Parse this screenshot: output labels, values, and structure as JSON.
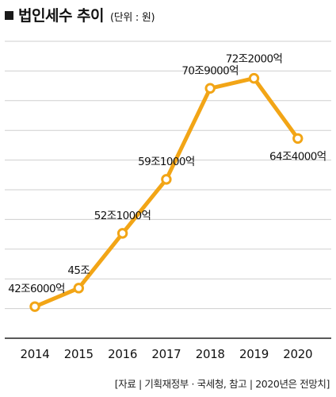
{
  "title": "법인세수 추이",
  "unit": "(단위 : 원)",
  "source": "[자료 | 기획재정부 · 국세청, 참고 | 2020년은 전망치]",
  "colors": {
    "line": "#F2A516",
    "marker_fill": "#ffffff",
    "grid": "#cfcfcf",
    "axis": "#222222"
  },
  "chart_data": {
    "type": "line",
    "x": [
      "2014",
      "2015",
      "2016",
      "2017",
      "2018",
      "2019",
      "2020"
    ],
    "values": [
      42.6,
      45.0,
      52.1,
      59.1,
      70.9,
      72.2,
      64.4
    ],
    "labels": [
      "42조6000억",
      "45조",
      "52조1000억",
      "59조1000억",
      "70조9000억",
      "72조2000억",
      "64조4000억"
    ],
    "ylim": [
      38.5,
      77
    ],
    "y_unit": "조원",
    "grid": true,
    "y_ticks_visible": false
  }
}
